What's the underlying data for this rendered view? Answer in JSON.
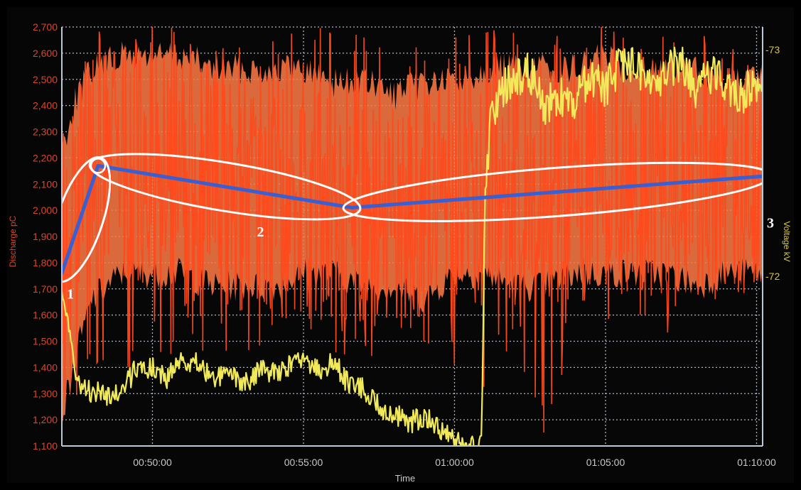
{
  "chart_data": {
    "type": "line",
    "xlabel": "Time",
    "ylabel_left": "Discharge pC",
    "ylabel_right": "Voltage kV",
    "x_ticks": [
      "00:50:00",
      "00:55:00",
      "01:00:00",
      "01:05:00",
      "01:10:00"
    ],
    "x_range_minutes": [
      47.0,
      70.2
    ],
    "y_left_ticks": [
      "1,100",
      "1,200",
      "1,300",
      "1,400",
      "1,500",
      "1,600",
      "1,700",
      "1,800",
      "1,900",
      "2,000",
      "2,100",
      "2,200",
      "2,300",
      "2,400",
      "2,500",
      "2,600",
      "2,700"
    ],
    "ylim_left": [
      1100,
      2700
    ],
    "y_right_ticks": [
      "-72",
      "-73"
    ],
    "ylim_right": [
      -71.25,
      -73.1
    ],
    "grid": true,
    "colors": {
      "discharge": "#ff4a1c",
      "discharge_fill": "#ff7a45",
      "voltage": "#f0ea5a",
      "trend": "#3a5fd0",
      "ellipse": "#ffffff"
    },
    "series": [
      {
        "key": "discharge",
        "x_minutes": [
          47.0,
          47.5,
          48.0,
          49.0,
          50.0,
          51.0,
          52.0,
          53.0,
          54.0,
          55.0,
          56.0,
          57.0,
          58.0,
          59.0,
          60.0,
          61.0,
          62.0,
          63.0,
          64.0,
          65.0,
          66.0,
          67.0,
          68.0,
          69.0,
          70.0
        ],
        "values": [
          1700,
          2000,
          2150,
          2150,
          2130,
          2110,
          2080,
          2060,
          2040,
          2020,
          2000,
          2010,
          2030,
          2040,
          2050,
          2060,
          2060,
          2070,
          2080,
          2090,
          2090,
          2100,
          2100,
          2110,
          2110
        ],
        "envelope_low": [
          1150,
          1400,
          1600,
          1700,
          1700,
          1700,
          1650,
          1650,
          1650,
          1700,
          1700,
          1650,
          1650,
          1600,
          1700,
          1700,
          1650,
          1650,
          1700,
          1700,
          1700,
          1700,
          1650,
          1700,
          1700
        ],
        "envelope_high": [
          2300,
          2500,
          2600,
          2650,
          2650,
          2650,
          2600,
          2600,
          2600,
          2600,
          2550,
          2550,
          2500,
          2550,
          2550,
          2600,
          2600,
          2600,
          2600,
          2650,
          2600,
          2600,
          2600,
          2550,
          2550
        ],
        "spike_low": [
          1100,
          1200,
          1400,
          1350,
          1400,
          1450,
          1400,
          1450,
          1500,
          1550,
          1400,
          1450,
          1400,
          1500,
          1400,
          1300,
          1500,
          1100,
          1500,
          1550,
          1600,
          1450,
          1550,
          1650,
          1650
        ],
        "spike_high": [
          2350,
          2650,
          2680,
          2700,
          2750,
          2700,
          2700,
          2690,
          2680,
          2700,
          2700,
          2690,
          2660,
          2640,
          2700,
          2720,
          2700,
          2700,
          2700,
          2720,
          2700,
          2680,
          2690,
          2640,
          2620
        ]
      },
      {
        "key": "voltage",
        "x_minutes": [
          47.0,
          47.3,
          47.6,
          48.0,
          48.5,
          49.0,
          49.5,
          50.0,
          50.5,
          51.0,
          51.5,
          52.0,
          52.5,
          53.0,
          53.5,
          54.0,
          54.5,
          55.0,
          55.5,
          56.0,
          56.5,
          57.0,
          57.5,
          58.0,
          58.5,
          59.0,
          59.5,
          60.0,
          60.5,
          60.9,
          61.0,
          61.2,
          61.5,
          62.0,
          62.5,
          63.0,
          63.5,
          64.0,
          64.5,
          65.0,
          65.5,
          66.0,
          66.5,
          67.0,
          67.5,
          68.0,
          68.5,
          69.0,
          69.5,
          70.0
        ],
        "values": [
          -71.95,
          -71.7,
          -71.5,
          -71.49,
          -71.48,
          -71.5,
          -71.6,
          -71.6,
          -71.55,
          -71.62,
          -71.62,
          -71.55,
          -71.57,
          -71.52,
          -71.58,
          -71.58,
          -71.6,
          -71.62,
          -71.58,
          -71.62,
          -71.52,
          -71.5,
          -71.42,
          -71.4,
          -71.35,
          -71.38,
          -71.33,
          -71.27,
          -71.25,
          -71.25,
          -72.3,
          -72.7,
          -72.82,
          -72.88,
          -72.9,
          -72.75,
          -72.79,
          -72.77,
          -72.88,
          -72.82,
          -72.95,
          -72.92,
          -72.85,
          -72.9,
          -72.95,
          -72.8,
          -72.9,
          -72.85,
          -72.8,
          -72.85
        ]
      }
    ],
    "trend_line": {
      "x_minutes": [
        47.0,
        48.2,
        56.6,
        70.2
      ],
      "values": [
        1760,
        2170,
        2010,
        2130
      ]
    },
    "segment_labels": [
      "1",
      "2",
      "3"
    ]
  }
}
